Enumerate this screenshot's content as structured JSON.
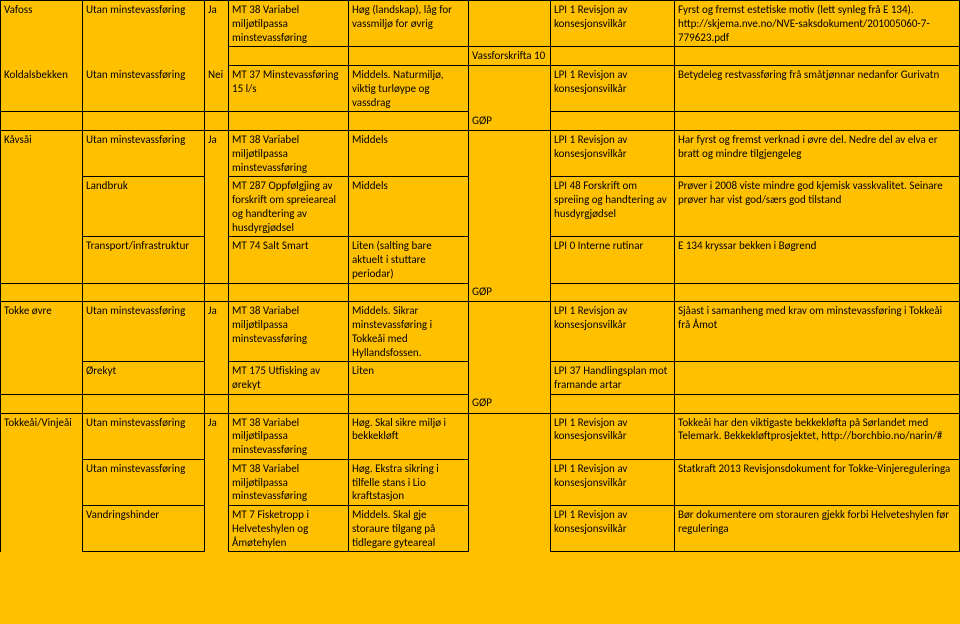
{
  "rows": [
    {
      "c0": "Vafoss",
      "c1": "Utan minstevassføring",
      "c2": "Ja",
      "c3": "MT 38 Variabel miljøtilpassa minstevassføring",
      "c4": "Høg (landskap), låg for vassmiljø for øvrig",
      "c5": "",
      "c6": "LPI 1 Revisjon av konsesjonsvilkår",
      "c7": "Fyrst og fremst estetiske motiv (lett synleg frå E 134). http://skjema.nve.no/NVE-saksdokument/201005060-7-779623.pdf",
      "b0": "nb",
      "b1": "nb",
      "b2": "nb",
      "b5": "nb"
    },
    {
      "c0": "",
      "c1": "",
      "c2": "",
      "c3": "",
      "c4": "",
      "c5": "Vassforskrifta 10",
      "c6": "",
      "c7": "",
      "b0": "nt nb",
      "b1": "nt nb",
      "b2": "nt nb",
      "b3": "nt",
      "b4": "nt",
      "b6": "nt",
      "b7": "nt",
      "spacer": true
    },
    {
      "c0": "Koldalsbekken",
      "c1": "Utan minstevassføring",
      "c2": "Nei",
      "c3": "MT 37 Minstevassføring 15 l/s",
      "c4": "Middels. Naturmiljø, viktig turløype og vassdrag",
      "c5": "",
      "c6": "LPI 1 Revisjon av konsesjonsvilkår",
      "c7": "Betydeleg restvassføring frå småtjønnar nedanfor Gurivatn",
      "b0": "nt",
      "b1": "nt",
      "b2": "nt",
      "b5": "nb"
    },
    {
      "c0": "",
      "c1": "",
      "c2": "",
      "c3": "",
      "c4": "",
      "c5": "GØP",
      "c6": "",
      "c7": "",
      "b3": "nt",
      "b4": "nt",
      "b5": "nt",
      "b6": "nt",
      "b7": "nt",
      "spacer": true
    },
    {
      "c0": "Kåvsåi",
      "c1": "Utan minstevassføring",
      "c2": "Ja",
      "c3": "MT 38 Variabel miljøtilpassa minstevassføring",
      "c4": "Middels",
      "c5": "",
      "c6": "LPI 1 Revisjon av konsesjonsvilkår",
      "c7": "Har fyrst og fremst verknad i øvre del. Nedre del av elva er bratt og mindre tilgjengeleg",
      "b0": "nb",
      "b2": "nb",
      "b5": "nb"
    },
    {
      "c0": "",
      "c1": "Landbruk",
      "c2": "",
      "c3": "MT 287 Oppfølgjing av forskrift om spreieareal og handtering av husdyrgjødsel",
      "c4": "Middels",
      "c5": "",
      "c6": "LPI 48 Forskrift om spreiing og handtering av husdyrgjødsel",
      "c7": "Prøver i 2008 viste mindre god kjemisk vasskvalitet. Seinare prøver har vist god/særs god tilstand",
      "b0": "nt nb",
      "b2": "nt nb",
      "b5": "nt nb"
    },
    {
      "c0": "",
      "c1": "Transport/infrastruktur",
      "c2": "",
      "c3": "MT 74 Salt Smart",
      "c4": "Liten (salting bare aktuelt i stuttare periodar)",
      "c5": "",
      "c6": "LPI 0 Interne rutinar",
      "c7": "E 134 kryssar bekken i Bøgrend",
      "b0": "nt",
      "b2": "nt",
      "b5": "nt nb"
    },
    {
      "c0": "",
      "c1": "",
      "c2": "",
      "c3": "",
      "c4": "",
      "c5": "GØP",
      "c6": "",
      "c7": "",
      "b3": "nt",
      "b4": "nt",
      "b5": "nt",
      "b6": "nt",
      "b7": "nt",
      "spacer": true
    },
    {
      "c0": "Tokke øvre",
      "c1": "Utan minstevassføring",
      "c2": "Ja",
      "c3": "MT 38 Variabel miljøtilpassa minstevassføring",
      "c4": "Middels. Sikrar minstevassføring i Tokkeåi med Hyllandsfossen.",
      "c5": "",
      "c6": "LPI 1 Revisjon av konsesjonsvilkår",
      "c7": "Sjåast i samanheng med krav om minstevassføring i Tokkeåi frå Åmot",
      "b0": "nb",
      "b2": "nb",
      "b5": "nb"
    },
    {
      "c0": "",
      "c1": "Ørekyt",
      "c2": "",
      "c3": "MT 175 Utfisking av ørekyt",
      "c4": "Liten",
      "c5": "",
      "c6": "LPI 37 Handlingsplan mot framande artar",
      "c7": "",
      "b0": "nt",
      "b2": "nt",
      "b5": "nt nb"
    },
    {
      "c0": "",
      "c1": "",
      "c2": "",
      "c3": "",
      "c4": "",
      "c5": "GØP",
      "c6": "",
      "c7": "",
      "b3": "nt",
      "b4": "nt",
      "b5": "nt",
      "b6": "nt",
      "b7": "nt",
      "spacer": true
    },
    {
      "c0": "Tokkeåi/Vinjeåi",
      "c1": "Utan minstevassføring",
      "c2": "Ja",
      "c3": "MT 38 Variabel miljøtilpassa minstevassføring",
      "c4": "Høg. Skal sikre miljø i bekkekløft",
      "c5": "",
      "c6": "LPI 1 Revisjon av konsesjonsvilkår",
      "c7": "Tokkeåi har den viktigaste bekkekløfta på Sørlandet med Telemark. Bekkekløftprosjektet, http://borchbio.no/narin/#",
      "b0": "nb",
      "b2": "nb",
      "b5": "nb"
    },
    {
      "c0": "",
      "c1": "Utan minstevassføring",
      "c2": "",
      "c3": "MT 38 Variabel miljøtilpassa minstevassføring",
      "c4": "Høg. Ekstra sikring i tilfelle stans i Lio kraftstasjon",
      "c5": "",
      "c6": "LPI 1 Revisjon av konsesjonsvilkår",
      "c7": "Statkraft 2013 Revisjonsdokument for Tokke-Vinjereguleringa",
      "b0": "nt nb",
      "b2": "nt nb",
      "b5": "nt nb"
    },
    {
      "c0": "",
      "c1": "Vandringshinder",
      "c2": "",
      "c3": "MT 7 Fisketropp i Helveteshylen og Åmøtehylen",
      "c4": "Middels. Skal gje storaure tilgang på tidlegare gyteareal",
      "c5": "",
      "c6": "LPI 1 Revisjon av konsesjonsvilkår",
      "c7": "Bør dokumentere om storauren gjekk forbi Helveteshylen før reguleringa",
      "b0": "nt nb",
      "b2": "nt nb",
      "b5": "nt nb"
    }
  ]
}
